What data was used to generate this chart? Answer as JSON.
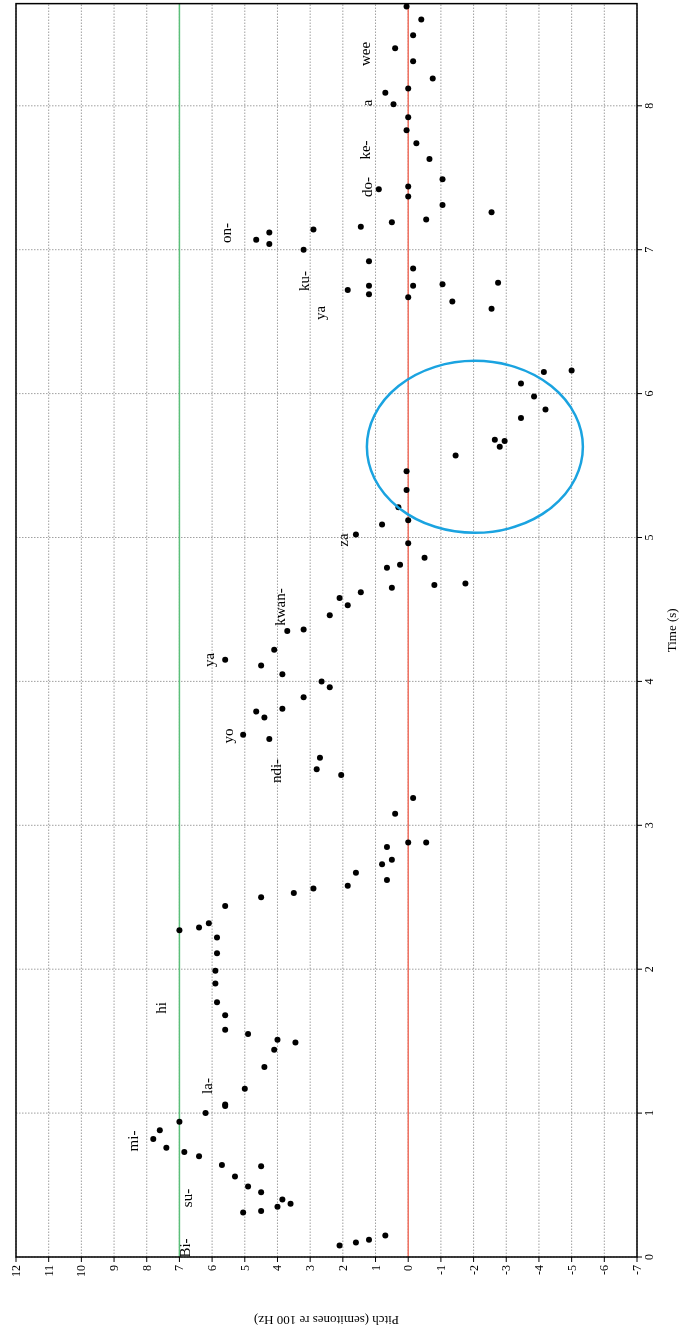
{
  "chart_data": {
    "type": "scatter",
    "xlabel": "Pitch (semitones re 100 Hz)",
    "ylabel": "Time (s)",
    "xlim": [
      12,
      -7
    ],
    "ylim": [
      0,
      8.71
    ],
    "yticks": [
      0,
      1,
      2,
      3,
      4,
      5,
      6,
      7,
      8
    ],
    "xticks": [
      12,
      11,
      10,
      9,
      8,
      7,
      6,
      5,
      4,
      3,
      2,
      1,
      0,
      -1,
      -2,
      -3,
      -4,
      -5,
      -6,
      -7
    ],
    "grid": true,
    "marker": "circle",
    "ref_lines": [
      {
        "axis": "x",
        "value": 7,
        "color": "#5cbf7a"
      },
      {
        "axis": "x",
        "value": 0,
        "color": "#f07060"
      }
    ],
    "series": [
      {
        "color": "#000000",
        "values": [
          0.08,
          0.1,
          0.12,
          0.15,
          0.31,
          0.32,
          0.35,
          0.37,
          0.4,
          0.45,
          0.49,
          0.56,
          0.63,
          0.64,
          0.7,
          0.73,
          0.76,
          0.82,
          0.88,
          0.94,
          1.0,
          1.05,
          1.06,
          1.17,
          1.32,
          1.44,
          1.49,
          1.51,
          1.55,
          1.58,
          1.68,
          1.77,
          1.9,
          1.99,
          2.11,
          2.22,
          2.27,
          2.29,
          2.32,
          2.44,
          2.5,
          2.53,
          2.56,
          2.58,
          2.62,
          2.67,
          2.73,
          2.76,
          2.85,
          2.88,
          2.88,
          3.08,
          3.19,
          3.35,
          3.39,
          3.47,
          3.6,
          3.63,
          3.75,
          3.79,
          3.81,
          3.89,
          3.96,
          4.0,
          4.05,
          4.11,
          4.15,
          4.22,
          4.35,
          4.36,
          4.46,
          4.53,
          4.58,
          4.62,
          4.65,
          4.67,
          4.68,
          4.79,
          4.81,
          4.86,
          4.96,
          5.02,
          5.09,
          5.12,
          5.21,
          5.33,
          5.46,
          5.57,
          5.63,
          5.67,
          5.68,
          5.83,
          5.89,
          5.98,
          6.07,
          6.15,
          6.16,
          6.59,
          6.64,
          6.67,
          6.69,
          6.72,
          6.75,
          6.75,
          6.76,
          6.77,
          6.87,
          6.92,
          7.0,
          7.04,
          7.07,
          7.12,
          7.14,
          7.16,
          7.19,
          7.21,
          7.26,
          7.31,
          7.37,
          7.42,
          7.44,
          7.49,
          7.63,
          7.74,
          7.83,
          7.92,
          8.01,
          8.09,
          8.12,
          8.19,
          8.31,
          8.4,
          8.49,
          8.6,
          8.69
        ],
        "x": [
          2.1,
          1.6,
          1.2,
          0.7,
          5.05,
          4.5,
          4.0,
          3.6,
          3.85,
          4.5,
          4.9,
          5.3,
          4.5,
          5.7,
          6.4,
          6.85,
          7.4,
          7.8,
          7.6,
          7.0,
          6.2,
          5.6,
          5.6,
          5.0,
          4.4,
          4.1,
          3.45,
          4.0,
          4.9,
          5.6,
          5.6,
          5.85,
          5.9,
          5.9,
          5.85,
          5.85,
          7.0,
          6.4,
          6.1,
          5.6,
          4.5,
          3.5,
          2.9,
          1.85,
          0.65,
          1.6,
          0.8,
          0.5,
          0.65,
          0.0,
          -0.55,
          0.4,
          -0.15,
          2.05,
          2.8,
          2.7,
          4.25,
          5.05,
          4.4,
          4.65,
          3.85,
          3.2,
          2.4,
          2.65,
          3.85,
          4.5,
          5.6,
          4.1,
          3.7,
          3.2,
          2.4,
          1.85,
          2.1,
          1.45,
          0.5,
          -0.8,
          -1.75,
          0.65,
          0.25,
          -0.5,
          0.0,
          1.6,
          0.8,
          0.0,
          0.3,
          0.05,
          0.05,
          -1.45,
          -2.8,
          -2.95,
          -2.65,
          -3.45,
          -4.2,
          -3.85,
          -3.45,
          -4.15,
          -5.0,
          -2.55,
          -1.35,
          0.0,
          1.2,
          1.85,
          1.2,
          -0.15,
          -1.05,
          -2.75,
          -0.15,
          1.2,
          3.2,
          4.25,
          4.65,
          4.25,
          2.9,
          1.45,
          0.5,
          -0.55,
          -2.55,
          -1.05,
          0.0,
          0.9,
          0.0,
          -1.05,
          -0.65,
          -0.25,
          0.05,
          0.0,
          0.45,
          0.7,
          0.0,
          -0.75,
          -0.15,
          0.4,
          -0.15,
          -0.4,
          0.05
        ]
      }
    ],
    "annotations": [
      "Bi-",
      "su-",
      "mi-",
      "la-",
      "hi",
      "ndi-",
      "yo",
      "ya",
      "kwan-",
      "za",
      "ya",
      "ku-",
      "on-",
      "do-",
      "ke-",
      "a",
      "wee"
    ]
  }
}
